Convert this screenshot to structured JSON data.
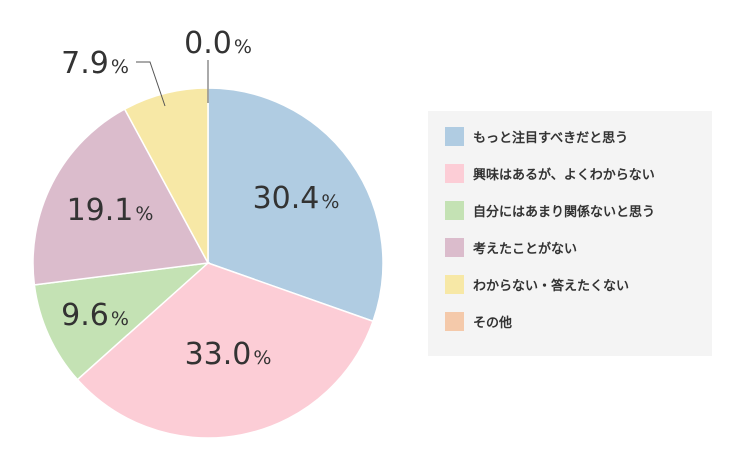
{
  "chart_data": {
    "type": "pie",
    "start_angle_deg": 0,
    "direction": "clockwise",
    "unit": "%",
    "slices": [
      {
        "label": "もっと注目すべきだと思う",
        "value": 30.4,
        "value_text": "30.4",
        "color": "#b0cce2"
      },
      {
        "label": "興味はあるが、よくわからない",
        "value": 33.0,
        "value_text": "33.0",
        "color": "#fccdd6"
      },
      {
        "label": "自分にはあまり関係ないと思う",
        "value": 9.6,
        "value_text": "9.6",
        "color": "#c4e2b4"
      },
      {
        "label": "考えたことがない",
        "value": 19.1,
        "value_text": "19.1",
        "color": "#dbbccc"
      },
      {
        "label": "わからない・答えたくない",
        "value": 7.9,
        "value_text": "7.9",
        "color": "#f7e8a6"
      },
      {
        "label": "その他",
        "value": 0.0,
        "value_text": "0.0",
        "color": "#f4c9aa"
      }
    ],
    "legend_position": "right"
  }
}
